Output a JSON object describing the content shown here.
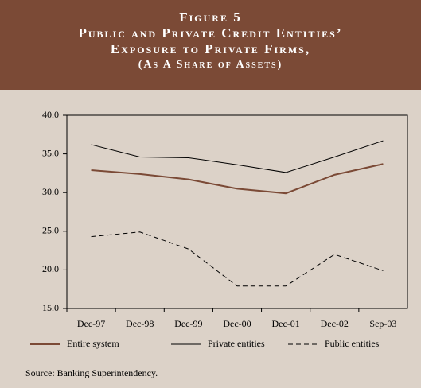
{
  "chart_data": {
    "type": "line",
    "title_lines": [
      "Figure 5",
      "Public and Private Credit Entities’",
      "Exposure to Private Firms,",
      "(As A Share of Assets)"
    ],
    "categories": [
      "Dec-97",
      "Dec-98",
      "Dec-99",
      "Dec-00",
      "Dec-01",
      "Dec-02",
      "Sep-03"
    ],
    "series": [
      {
        "name": "Entire system",
        "color": "#7b4a36",
        "dash": "none",
        "width": 2,
        "values": [
          32.9,
          32.4,
          31.7,
          30.5,
          29.9,
          32.3,
          33.7
        ]
      },
      {
        "name": "Private entities",
        "color": "#000000",
        "dash": "none",
        "width": 1,
        "values": [
          36.2,
          34.6,
          34.5,
          33.6,
          32.6,
          34.6,
          36.7
        ]
      },
      {
        "name": "Public entities",
        "color": "#000000",
        "dash": "6,4",
        "width": 1,
        "values": [
          24.3,
          24.9,
          22.7,
          17.9,
          17.9,
          22.0,
          19.9
        ]
      }
    ],
    "ylim": [
      15,
      40
    ],
    "yticks": [
      {
        "value": 15,
        "label": "15.0"
      },
      {
        "value": 20,
        "label": "20.0"
      },
      {
        "value": 25,
        "label": "25.0"
      },
      {
        "value": 30,
        "label": "30.0"
      },
      {
        "value": 35,
        "label": "35.0"
      },
      {
        "value": 40,
        "label": "40.0"
      }
    ],
    "source": "Source: Banking Superintendency."
  }
}
